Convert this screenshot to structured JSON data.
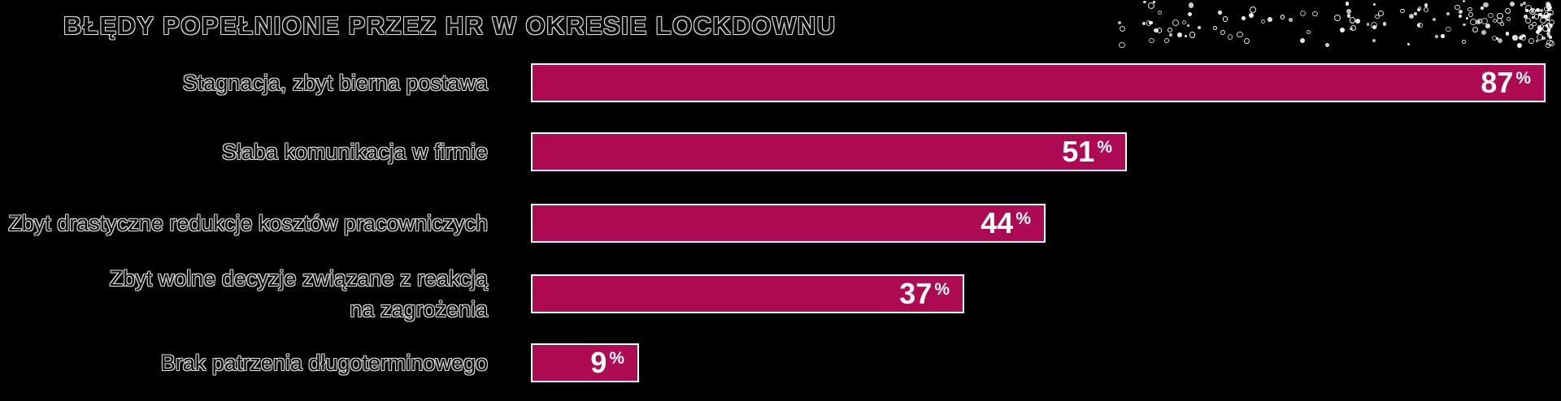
{
  "title": "BŁĘDY POPEŁNIONE PRZEZ HR W OKRESIE LOCKDOWNU",
  "chart_data": {
    "type": "bar",
    "orientation": "horizontal",
    "title": "BŁĘDY POPEŁNIONE PRZEZ HR W OKRESIE LOCKDOWNU",
    "categories": [
      "Stagnacja, zbyt bierna postawa",
      "Słaba komunikacja w firmie",
      "Zbyt drastyczne redukcje kosztów pracowniczych",
      "Zbyt wolne decyzje związane z reakcją\nna zagrożenia",
      "Brak patrzenia długoterminowego"
    ],
    "values": [
      87,
      51,
      44,
      37,
      9
    ],
    "unit": "%",
    "xlim": [
      0,
      100
    ],
    "grid": false,
    "legend": false,
    "background_color": "#000000",
    "bar_color": "#ad0a53",
    "bar_border_color": "#ffffff",
    "value_label_color": "#ffffff",
    "category_label_color": "#d9d9d9"
  },
  "decoration": {
    "name": "particle-dot-scatter",
    "position": "top-right",
    "color": "#ffffff"
  }
}
